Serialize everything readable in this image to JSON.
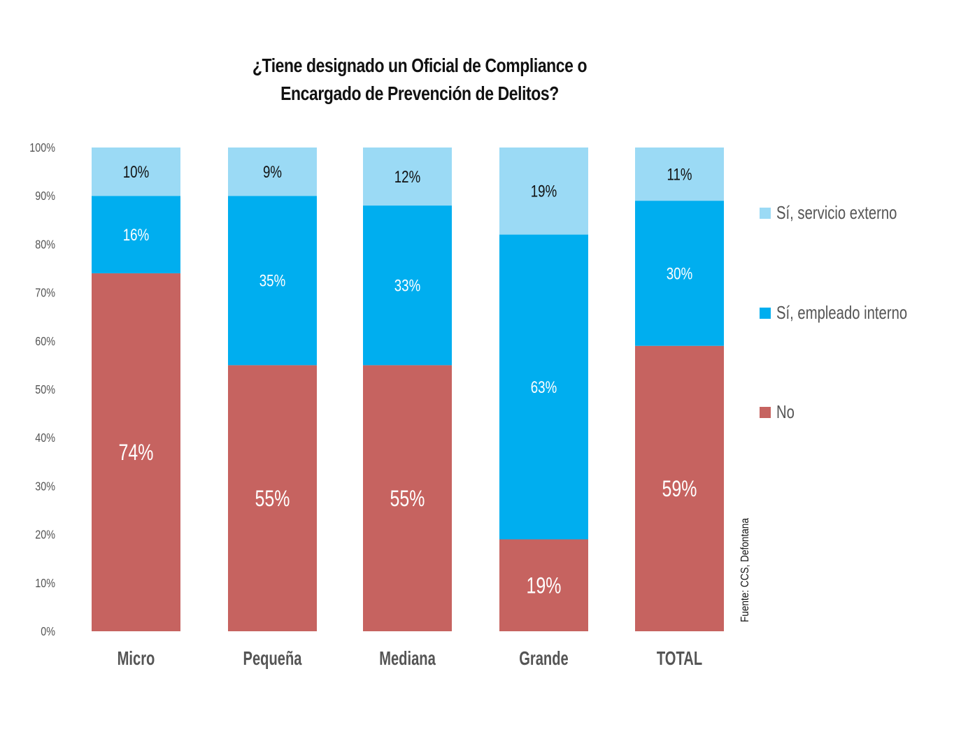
{
  "chart_data": {
    "type": "bar",
    "stacked": true,
    "percent_stacked": true,
    "title": "¿Tiene designado un Oficial de Compliance o Encargado de Prevención de Delitos?",
    "title_lines": [
      "¿Tiene designado un Oficial de Compliance o",
      "Encargado de Prevención de Delitos?"
    ],
    "categories": [
      "Micro",
      "Pequeña",
      "Mediana",
      "Grande",
      "TOTAL"
    ],
    "series": [
      {
        "name": "No",
        "color": "#C66360",
        "values": [
          74,
          55,
          55,
          19,
          59
        ],
        "labels": [
          "74%",
          "55%",
          "55%",
          "19%",
          "59%"
        ]
      },
      {
        "name": "Sí, empleado interno",
        "color": "#00AEEF",
        "values": [
          16,
          35,
          33,
          63,
          30
        ],
        "labels": [
          "16%",
          "35%",
          "33%",
          "63%",
          "30%"
        ]
      },
      {
        "name": "Sí, servicio externo",
        "color": "#9BDAF5",
        "values": [
          10,
          9,
          12,
          19,
          11
        ],
        "labels": [
          "10%",
          "9%",
          "12%",
          "19%",
          "11%"
        ]
      }
    ],
    "ylim": [
      0,
      100
    ],
    "yticks": [
      0,
      10,
      20,
      30,
      40,
      50,
      60,
      70,
      80,
      90,
      100
    ],
    "ytick_labels": [
      "0%",
      "10%",
      "20%",
      "30%",
      "40%",
      "50%",
      "60%",
      "70%",
      "80%",
      "90%",
      "100%"
    ],
    "xlabel": "",
    "ylabel": "",
    "grid": false,
    "legend_position": "right",
    "legend_order": [
      "Sí, servicio externo",
      "Sí, empleado interno",
      "No"
    ],
    "source": "Fuente:  CCS, Defontana"
  }
}
